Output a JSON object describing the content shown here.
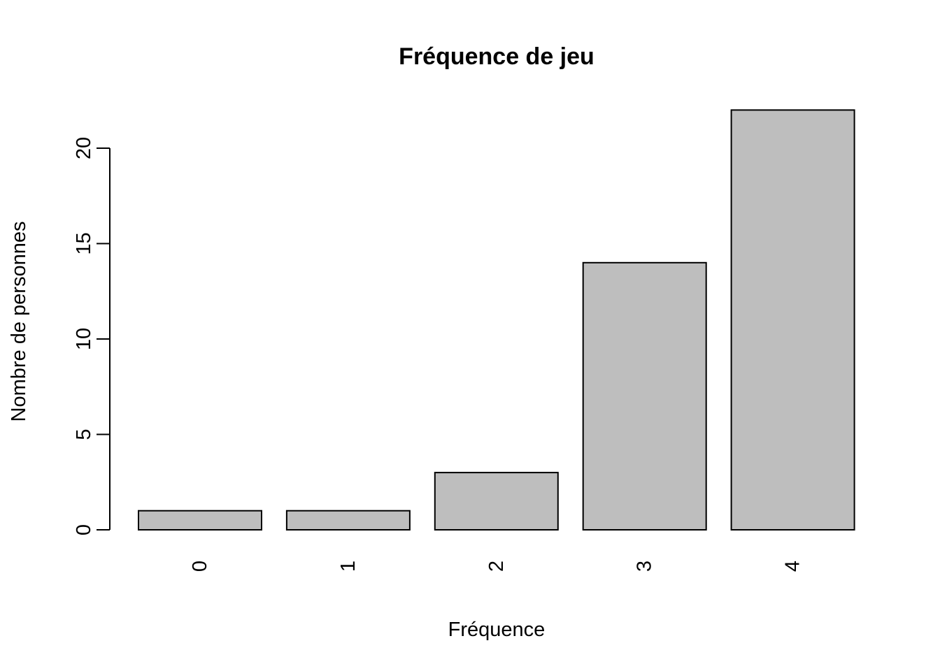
{
  "chart_data": {
    "type": "bar",
    "title": "Fréquence de jeu",
    "xlabel": "Fréquence",
    "ylabel": "Nombre de personnes",
    "categories": [
      "0",
      "1",
      "2",
      "3",
      "4"
    ],
    "values": [
      1,
      1,
      3,
      14,
      22
    ],
    "ylim": [
      0,
      22
    ],
    "yticks": [
      0,
      5,
      10,
      15,
      20
    ],
    "ytick_labels": [
      "0",
      "5",
      "10",
      "15",
      "20"
    ],
    "grid": false,
    "bar_color": "#bebebe",
    "edge_color": "#000000"
  }
}
